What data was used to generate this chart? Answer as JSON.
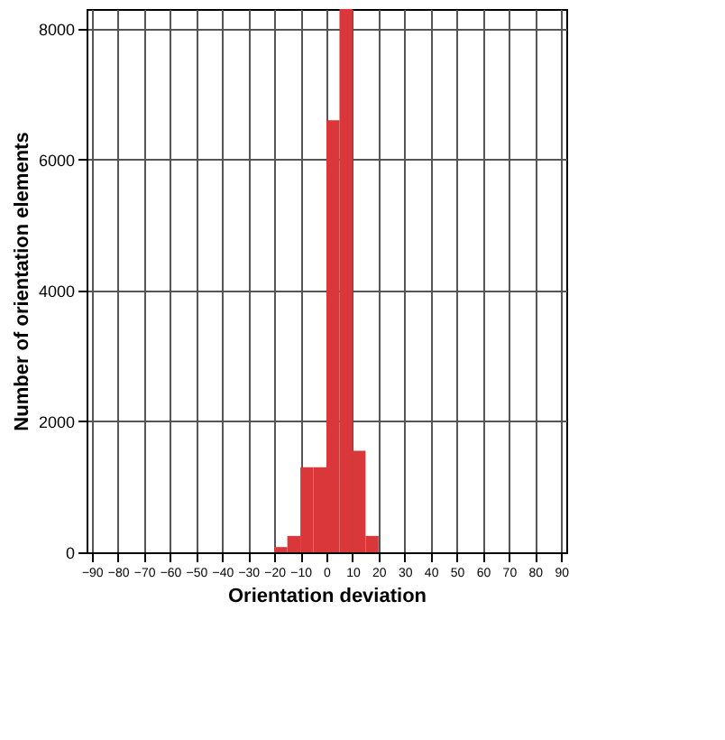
{
  "chart_data": {
    "type": "histogram",
    "xlabel": "Orientation deviation",
    "ylabel": "Number of orientation elements",
    "bins": [
      -20,
      -15,
      -10,
      -5,
      0,
      5,
      10,
      15,
      20
    ],
    "values": [
      80,
      250,
      1300,
      1300,
      6600,
      8300,
      1550,
      250
    ],
    "color": "#d9373a",
    "xlim": [
      -92,
      92
    ],
    "xticks": [
      -90,
      -80,
      -70,
      -60,
      -50,
      -40,
      -30,
      -20,
      -10,
      0,
      10,
      20,
      30,
      40,
      50,
      60,
      70,
      80,
      90
    ],
    "ylim": [
      0,
      8300
    ],
    "yticks": [
      0,
      2000,
      4000,
      6000,
      8000
    ],
    "grid": true
  }
}
